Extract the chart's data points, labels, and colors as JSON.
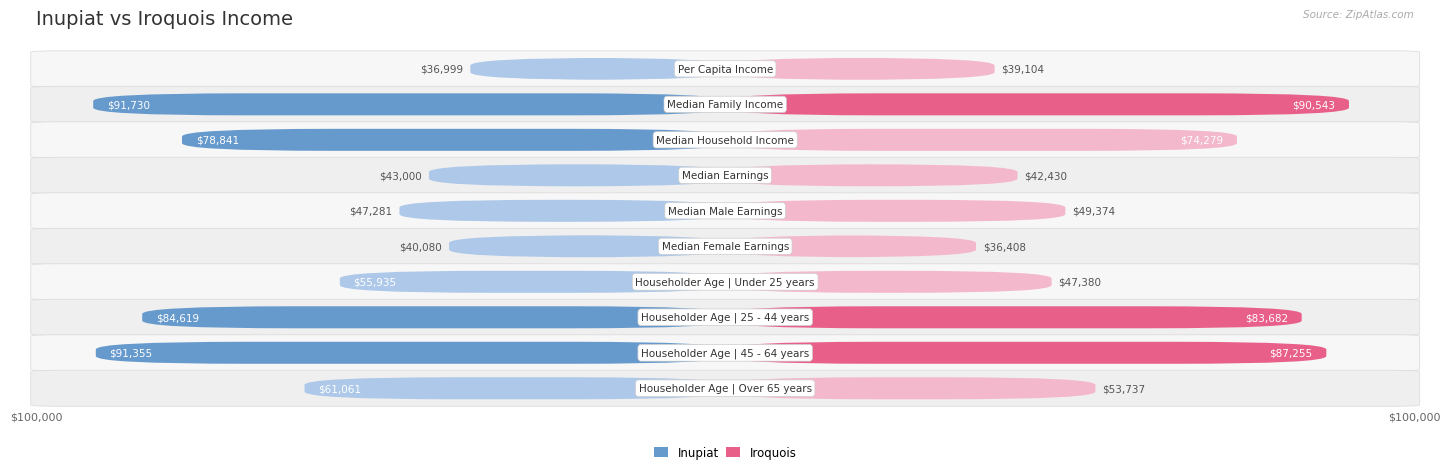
{
  "title": "Inupiat vs Iroquois Income",
  "source": "Source: ZipAtlas.com",
  "max_value": 100000,
  "categories": [
    "Per Capita Income",
    "Median Family Income",
    "Median Household Income",
    "Median Earnings",
    "Median Male Earnings",
    "Median Female Earnings",
    "Householder Age | Under 25 years",
    "Householder Age | 25 - 44 years",
    "Householder Age | 45 - 64 years",
    "Householder Age | Over 65 years"
  ],
  "inupiat_values": [
    36999,
    91730,
    78841,
    43000,
    47281,
    40080,
    55935,
    84619,
    91355,
    61061
  ],
  "iroquois_values": [
    39104,
    90543,
    74279,
    42430,
    49374,
    36408,
    47380,
    83682,
    87255,
    53737
  ],
  "inupiat_color_light": "#adc8e8",
  "inupiat_color_dark": "#6699cc",
  "iroquois_color_light": "#f4b8cc",
  "iroquois_color_dark": "#e8608a",
  "row_colors": [
    "#f7f7f7",
    "#efefef"
  ],
  "row_border_color": "#dddddd",
  "label_bg_color": "#ffffff",
  "label_border_color": "#cccccc",
  "background_color": "#ffffff",
  "title_fontsize": 14,
  "label_fontsize": 7.5,
  "value_fontsize": 7.5,
  "legend_fontsize": 8.5,
  "inside_value_color": "#ffffff",
  "outside_value_color": "#555555"
}
